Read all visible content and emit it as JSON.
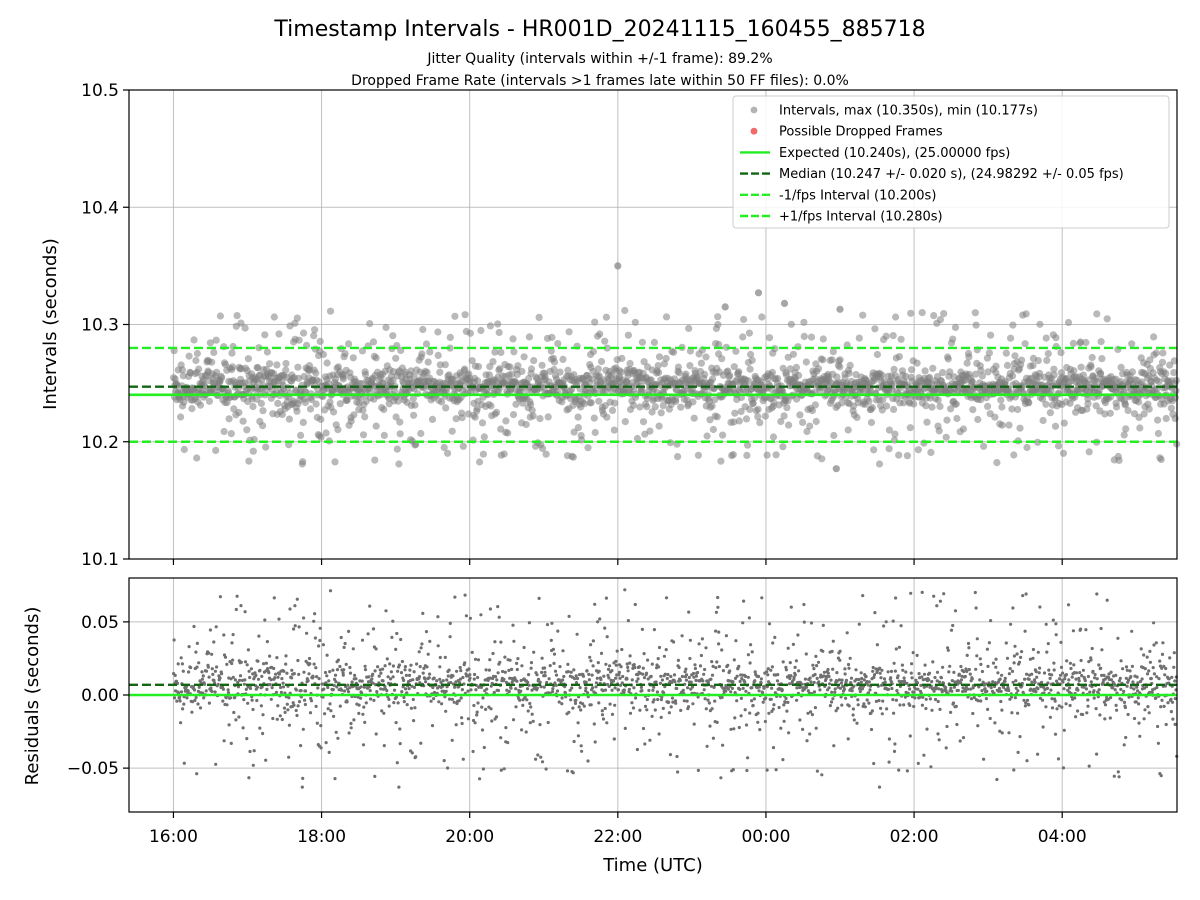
{
  "chart_data": {
    "type": "scatter",
    "title": "Timestamp Intervals - HR001D_20241115_160455_885718",
    "subtitles": [
      "Jitter Quality (intervals within +/-1 frame): 89.2%",
      "Dropped Frame Rate (intervals >1 frames late within 50 FF files): 0.0%"
    ],
    "xlabel": "Time (UTC)",
    "x_ticks": [
      "16:00",
      "18:00",
      "20:00",
      "22:00",
      "00:00",
      "02:00",
      "04:00"
    ],
    "x_range_hours": [
      15.4,
      29.55
    ],
    "x_tick_hours": [
      16,
      18,
      20,
      22,
      24,
      26,
      28
    ],
    "colors": {
      "intervals": "#808080",
      "dropped": "#ee4444",
      "expected": "#22ee22",
      "median": "#116611",
      "fps_band": "#22ee22"
    },
    "top_panel": {
      "ylabel": "Intervals (seconds)",
      "ylim": [
        10.1,
        10.5
      ],
      "y_ticks": [
        "10.1",
        "10.2",
        "10.3",
        "10.4",
        "10.5"
      ],
      "y_tick_values": [
        10.1,
        10.2,
        10.3,
        10.4,
        10.5
      ],
      "grid": true,
      "legend_position": "top-right",
      "series": [
        {
          "name": "Intervals, max (10.350s), min (10.177s)",
          "kind": "scatter",
          "color": "#808080",
          "summary": {
            "max": 10.35,
            "min": 10.177,
            "center": 10.247,
            "spread": 0.02
          }
        },
        {
          "name": "Possible Dropped Frames",
          "kind": "scatter",
          "color": "#ee4444",
          "points": []
        },
        {
          "name": "Expected (10.240s), (25.00000 fps)",
          "kind": "hline",
          "value": 10.24,
          "style": "solid",
          "color": "#22ee22"
        },
        {
          "name": "Median (10.247 +/- 0.020 s), (24.98292 +/- 0.05 fps)",
          "kind": "hline",
          "value": 10.247,
          "style": "dashed",
          "color": "#116611"
        },
        {
          "name": "-1/fps Interval (10.200s)",
          "kind": "hline",
          "value": 10.2,
          "style": "dashed",
          "color": "#22ee22"
        },
        {
          "name": "+1/fps Interval (10.280s)",
          "kind": "hline",
          "value": 10.28,
          "style": "dashed",
          "color": "#22ee22"
        }
      ]
    },
    "bottom_panel": {
      "ylabel": "Residuals (seconds)",
      "ylim": [
        -0.08,
        0.08
      ],
      "y_ticks": [
        "0.05",
        "0.00",
        "−0.05"
      ],
      "y_tick_values": [
        0.05,
        0.0,
        -0.05
      ],
      "grid": true,
      "series": [
        {
          "name": "Residuals",
          "kind": "scatter",
          "color": "#707070",
          "summary": {
            "center": 0.007,
            "spread": 0.02,
            "max": 0.078,
            "min": -0.063
          }
        },
        {
          "name": "Expected",
          "kind": "hline",
          "value": 0.0,
          "style": "solid",
          "color": "#22ee22"
        },
        {
          "name": "Median",
          "kind": "hline",
          "value": 0.007,
          "style": "dashed",
          "color": "#116611"
        }
      ]
    }
  }
}
